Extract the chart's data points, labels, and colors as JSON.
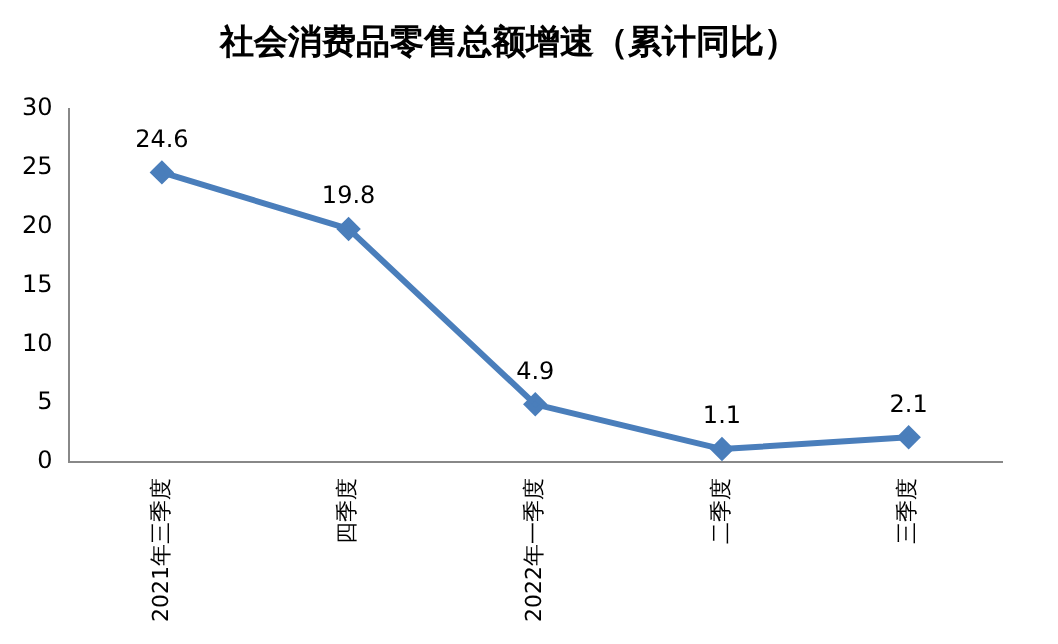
{
  "chart_data": {
    "type": "line",
    "title": "社会消费品零售总额增速（累计同比）",
    "categories": [
      "2021年三季度",
      "四季度",
      "2022年一季度",
      "二季度",
      "三季度"
    ],
    "series": [
      {
        "color": "#4a7ebb",
        "values": [
          24.6,
          19.8,
          4.9,
          1.1,
          2.1
        ]
      }
    ],
    "ylim": [
      0,
      30
    ],
    "yticks": [
      0,
      5,
      10,
      15,
      20,
      25,
      30
    ],
    "grid": false,
    "legend": false,
    "marker": "diamond",
    "line_style": "solid",
    "data_labels": true
  }
}
